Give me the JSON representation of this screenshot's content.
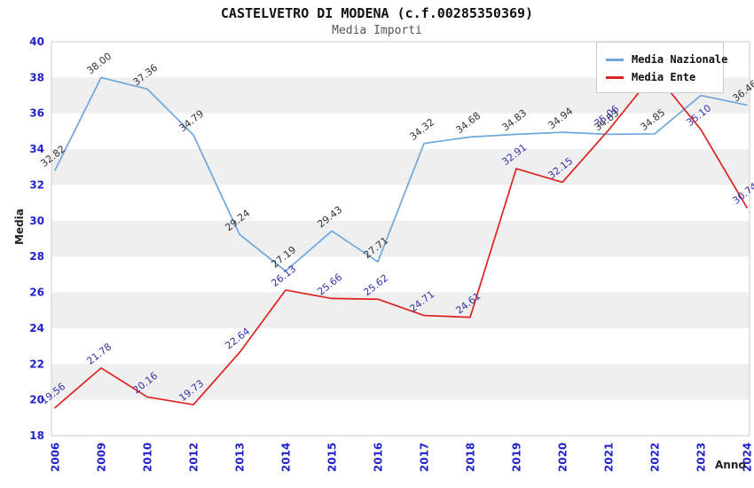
{
  "title": "CASTELVETRO DI MODENA (c.f.00285350369)",
  "subtitle": "Media Importi",
  "chart_data": {
    "type": "line",
    "title": "CASTELVETRO DI MODENA (c.f.00285350369)",
    "subtitle": "Media Importi",
    "xlabel": "Anno",
    "ylabel": "Media",
    "ylim": [
      18,
      40
    ],
    "yticks": [
      40,
      38,
      36,
      34,
      32,
      30,
      28,
      26,
      24,
      22,
      20,
      18
    ],
    "categories": [
      "2006",
      "2009",
      "2010",
      "2012",
      "2013",
      "2014",
      "2015",
      "2016",
      "2017",
      "2018",
      "2019",
      "2020",
      "2021",
      "2022",
      "2023",
      "2024"
    ],
    "series": [
      {
        "name": "Media Nazionale",
        "color": "#6fa8dc",
        "label_color": "#333333",
        "values": [
          32.82,
          38.0,
          37.36,
          34.79,
          29.24,
          27.19,
          29.43,
          27.71,
          34.32,
          34.68,
          34.83,
          34.94,
          34.83,
          34.85,
          37.0,
          36.46
        ],
        "labels": [
          "32.82",
          "38.00",
          "37.36",
          "34.79",
          "29.24",
          "27.19",
          "29.43",
          "27.71",
          "34.32",
          "34.68",
          "34.83",
          "34.94",
          "34.83",
          "34.85",
          "",
          "36.46"
        ]
      },
      {
        "name": "Media Ente",
        "color": "#dd2222",
        "label_color": "#3333aa",
        "values": [
          19.56,
          21.78,
          20.16,
          19.73,
          22.64,
          26.13,
          25.66,
          25.62,
          24.71,
          24.61,
          32.91,
          32.15,
          35.06,
          38.26,
          35.1,
          30.74
        ],
        "labels": [
          "19.56",
          "21.78",
          "20.16",
          "19.73",
          "22.64",
          "26.13",
          "25.66",
          "25.62",
          "24.71",
          "24.61",
          "32.91",
          "32.15",
          "35.06",
          "",
          "35.10",
          "30.74"
        ]
      }
    ],
    "legend_position": "top-right",
    "grid": "banded-rows",
    "band_color": "#efefef",
    "frame_color": "#cccccc",
    "axis_tick_color": "#2222cc"
  }
}
